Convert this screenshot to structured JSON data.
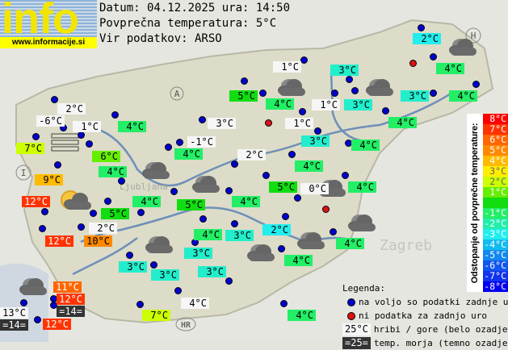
{
  "header": {
    "logo_text": "info",
    "logo_url": "www.informacije.si",
    "date_line": "Datum: 04.12.2025 ura: 14:50",
    "avg_line": "Povprečna temperatura: 5°C",
    "source_line": "Vir podatkov: ARSO"
  },
  "map_labels": {
    "country_a": "A",
    "country_i": "I",
    "country_h": "H",
    "country_hr": "HR",
    "city_zagreb": "Zagreb",
    "city_ljubljana": "Ljubljana"
  },
  "stations": [
    {
      "t": "2°C",
      "type": "mountain"
    },
    {
      "t": "-6°C",
      "type": "mountain"
    },
    {
      "t": "1°C",
      "type": "mountain"
    },
    {
      "t": "7°C",
      "type": "normal"
    },
    {
      "t": "6°C",
      "type": "normal"
    },
    {
      "t": "4°C",
      "type": "normal"
    },
    {
      "t": "3°C",
      "type": "mountain"
    },
    {
      "t": "-1°C",
      "type": "mountain"
    },
    {
      "t": "4°C",
      "type": "normal"
    },
    {
      "t": "2°C",
      "type": "mountain"
    },
    {
      "t": "9°C",
      "type": "normal"
    },
    {
      "t": "4°C",
      "type": "normal"
    },
    {
      "t": "12°C",
      "type": "normal"
    },
    {
      "t": "4°C",
      "type": "normal"
    },
    {
      "t": "5°C",
      "type": "normal"
    },
    {
      "t": "5°C",
      "type": "normal"
    },
    {
      "t": "2°C",
      "type": "mountain"
    },
    {
      "t": "12°C",
      "type": "normal"
    },
    {
      "t": "10°C",
      "type": "normal"
    },
    {
      "t": "4°C",
      "type": "normal"
    },
    {
      "t": "4°C",
      "type": "normal"
    },
    {
      "t": "3°C",
      "type": "normal"
    },
    {
      "t": "3°C",
      "type": "normal"
    },
    {
      "t": "3°C",
      "type": "normal"
    },
    {
      "t": "3°C",
      "type": "normal"
    },
    {
      "t": "3°C",
      "type": "normal"
    },
    {
      "t": "4°C",
      "type": "mountain"
    },
    {
      "t": "7°C",
      "type": "normal"
    },
    {
      "t": "11°C",
      "type": "normal"
    },
    {
      "t": "12°C",
      "type": "normal"
    },
    {
      "t": "=14=",
      "type": "sea"
    },
    {
      "t": "13°C",
      "type": "mountain"
    },
    {
      "t": "=14=",
      "type": "sea"
    },
    {
      "t": "12°C",
      "type": "normal"
    },
    {
      "t": "2°C",
      "type": "normal"
    },
    {
      "t": "4°C",
      "type": "normal"
    },
    {
      "t": "1°C",
      "type": "mountain"
    },
    {
      "t": "5°C",
      "type": "normal"
    },
    {
      "t": "4°C",
      "type": "normal"
    },
    {
      "t": "3°C",
      "type": "normal"
    },
    {
      "t": "3°C",
      "type": "normal"
    },
    {
      "t": "1°C",
      "type": "mountain"
    },
    {
      "t": "1°C",
      "type": "mountain"
    },
    {
      "t": "3°C",
      "type": "normal"
    },
    {
      "t": "3°C",
      "type": "normal"
    },
    {
      "t": "4°C",
      "type": "normal"
    },
    {
      "t": "4°C",
      "type": "normal"
    },
    {
      "t": "4°C",
      "type": "normal"
    },
    {
      "t": "4°C",
      "type": "normal"
    },
    {
      "t": "5°C",
      "type": "normal"
    },
    {
      "t": "0°C",
      "type": "mountain"
    },
    {
      "t": "4°C",
      "type": "normal"
    },
    {
      "t": "2°C",
      "type": "normal"
    },
    {
      "t": "4°C",
      "type": "normal"
    },
    {
      "t": "4°C",
      "type": "normal"
    },
    {
      "t": "4°C",
      "type": "normal"
    }
  ],
  "temp_colors": {
    "12": "#ff3300",
    "11": "#ff6600",
    "10": "#ff8800",
    "9": "#ffbb00",
    "7": "#ccff00",
    "6": "#66ee00",
    "5": "#11dd11",
    "4": "#22ee66",
    "3": "#22eecc",
    "2": "#22eeee"
  },
  "dot_status": [
    "available",
    "missing"
  ],
  "weather_icons": [
    "cloud",
    "cloud",
    "cloud",
    "cloud",
    "sun-cloud",
    "cloud",
    "cloud",
    "cloud",
    "cloud",
    "cloud",
    "cloud",
    "cloud",
    "fog"
  ],
  "scale": {
    "title": "Odstopanje od povprečne temperature:",
    "steps": [
      {
        "label": "8°C",
        "color": "#ff0000"
      },
      {
        "label": "7°C",
        "color": "#ff3300"
      },
      {
        "label": "6°C",
        "color": "#ff6600"
      },
      {
        "label": "5°C",
        "color": "#ff8800"
      },
      {
        "label": "4°C",
        "color": "#ffbb00"
      },
      {
        "label": "3°C",
        "color": "#ffee00"
      },
      {
        "label": "2°C",
        "color": "#ccff00"
      },
      {
        "label": "1°C",
        "color": "#66ee00"
      },
      {
        "label": "",
        "color": "#11dd11"
      },
      {
        "label": "-1°C",
        "color": "#22ee66"
      },
      {
        "label": "-2°C",
        "color": "#22eeaa"
      },
      {
        "label": "-3°C",
        "color": "#22eeee"
      },
      {
        "label": "-4°C",
        "color": "#11bbee"
      },
      {
        "label": "-5°C",
        "color": "#1188ee"
      },
      {
        "label": "-6°C",
        "color": "#1155ee"
      },
      {
        "label": "-7°C",
        "color": "#1133ee"
      },
      {
        "label": "-8°C",
        "color": "#0000ee"
      }
    ]
  },
  "legend": {
    "title": "Legenda:",
    "available": "na voljo so podatki zadnje ure",
    "missing": "ni podatka za zadnjo uro",
    "mountain_sample": "25°C",
    "mountain_text": "hribi / gore (belo ozadje)",
    "sea_sample": "=25=",
    "sea_text": "temp. morja (temno ozadje)"
  }
}
